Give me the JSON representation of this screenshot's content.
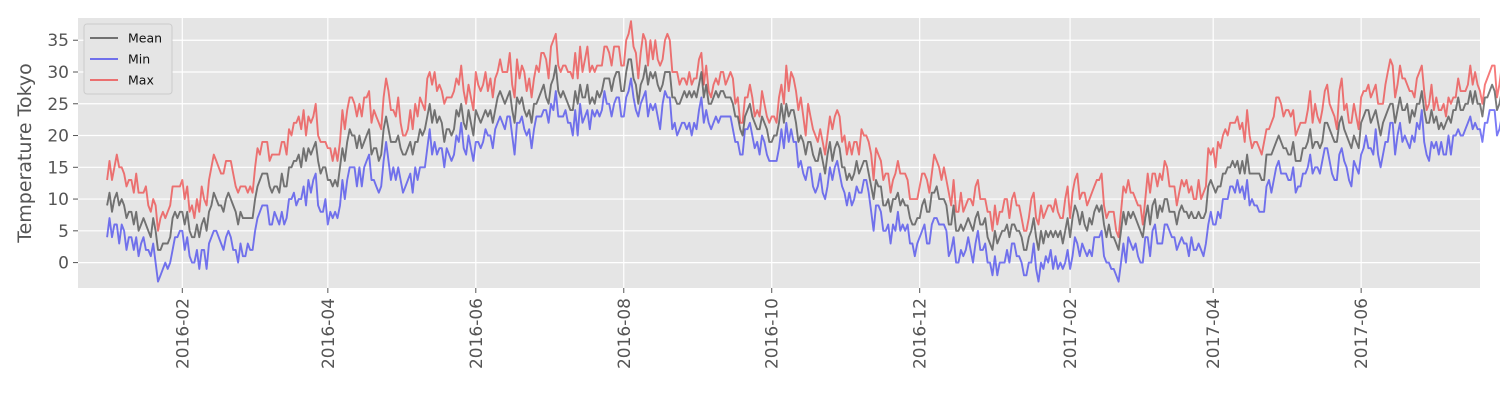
{
  "chart_data": {
    "type": "line",
    "title": "",
    "xlabel": "",
    "ylabel": "Temperature Tokyo",
    "x_range": [
      "2015-12-20",
      "2017-07-20"
    ],
    "x_start": "2016-01-01",
    "x_step_days": 1,
    "ylim": [
      -4,
      38.5
    ],
    "y_ticks": [
      0,
      5,
      10,
      15,
      20,
      25,
      30,
      35
    ],
    "x_ticks": [
      "2016-02",
      "2016-04",
      "2016-06",
      "2016-08",
      "2016-10",
      "2016-12",
      "2017-02",
      "2017-04",
      "2017-06"
    ],
    "grid": true,
    "legend_position": "top-left",
    "keypoints": {
      "mean": [
        [
          0,
          8
        ],
        [
          5,
          9
        ],
        [
          10,
          6
        ],
        [
          15,
          4
        ],
        [
          20,
          5
        ],
        [
          25,
          3
        ],
        [
          30,
          5
        ],
        [
          35,
          6
        ],
        [
          40,
          6
        ],
        [
          45,
          11
        ],
        [
          50,
          10
        ],
        [
          55,
          8
        ],
        [
          60,
          9
        ],
        [
          65,
          13
        ],
        [
          70,
          9
        ],
        [
          75,
          13
        ],
        [
          80,
          15
        ],
        [
          85,
          17
        ],
        [
          90,
          15
        ],
        [
          95,
          14
        ],
        [
          100,
          17
        ],
        [
          105,
          19
        ],
        [
          110,
          17
        ],
        [
          115,
          20
        ],
        [
          120,
          21
        ],
        [
          125,
          19
        ],
        [
          130,
          21
        ],
        [
          135,
          23
        ],
        [
          140,
          21
        ],
        [
          145,
          22
        ],
        [
          150,
          23
        ],
        [
          155,
          24
        ],
        [
          160,
          24
        ],
        [
          165,
          25
        ],
        [
          170,
          25
        ],
        [
          175,
          24
        ],
        [
          180,
          25
        ],
        [
          185,
          27
        ],
        [
          190,
          25
        ],
        [
          195,
          27
        ],
        [
          200,
          25
        ],
        [
          205,
          27
        ],
        [
          210,
          28
        ],
        [
          215,
          29
        ],
        [
          220,
          27
        ],
        [
          225,
          29
        ],
        [
          230,
          28
        ],
        [
          235,
          27
        ],
        [
          240,
          28
        ],
        [
          245,
          27
        ],
        [
          250,
          26
        ],
        [
          255,
          26
        ],
        [
          260,
          24
        ],
        [
          265,
          24
        ],
        [
          270,
          23
        ],
        [
          275,
          22
        ],
        [
          280,
          24
        ],
        [
          285,
          21
        ],
        [
          290,
          19
        ],
        [
          295,
          18
        ],
        [
          300,
          16
        ],
        [
          305,
          14
        ],
        [
          310,
          14
        ],
        [
          315,
          12
        ],
        [
          320,
          11
        ],
        [
          325,
          9
        ],
        [
          330,
          9
        ],
        [
          335,
          8
        ],
        [
          340,
          9
        ],
        [
          345,
          7
        ],
        [
          350,
          7
        ],
        [
          355,
          6
        ],
        [
          360,
          5
        ],
        [
          365,
          5
        ],
        [
          370,
          5
        ],
        [
          375,
          5
        ],
        [
          380,
          4
        ],
        [
          385,
          5
        ],
        [
          390,
          5
        ],
        [
          395,
          6
        ],
        [
          400,
          6
        ],
        [
          405,
          6
        ],
        [
          410,
          6
        ],
        [
          415,
          7
        ],
        [
          420,
          7
        ],
        [
          425,
          7
        ],
        [
          430,
          7
        ],
        [
          435,
          8
        ],
        [
          440,
          8
        ],
        [
          445,
          9
        ],
        [
          450,
          10
        ],
        [
          455,
          11
        ],
        [
          460,
          12
        ],
        [
          465,
          14
        ],
        [
          470,
          15
        ],
        [
          475,
          16
        ],
        [
          480,
          17
        ],
        [
          485,
          17
        ],
        [
          490,
          18
        ],
        [
          495,
          19
        ],
        [
          500,
          20
        ],
        [
          505,
          21
        ],
        [
          510,
          21
        ],
        [
          515,
          21
        ],
        [
          520,
          22
        ],
        [
          525,
          22
        ],
        [
          530,
          22
        ],
        [
          535,
          23
        ],
        [
          540,
          23
        ],
        [
          545,
          24
        ],
        [
          550,
          24
        ],
        [
          555,
          24
        ],
        [
          560,
          24
        ],
        [
          565,
          24
        ],
        [
          570,
          24
        ],
        [
          575,
          24
        ],
        [
          580,
          24
        ]
      ],
      "min": [
        [
          0,
          3
        ],
        [
          5,
          4
        ],
        [
          10,
          2
        ],
        [
          15,
          1
        ],
        [
          20,
          1
        ],
        [
          25,
          -1
        ],
        [
          30,
          1
        ],
        [
          35,
          2
        ],
        [
          40,
          1
        ],
        [
          45,
          6
        ],
        [
          50,
          4
        ],
        [
          55,
          3
        ],
        [
          60,
          4
        ],
        [
          65,
          8
        ],
        [
          70,
          4
        ],
        [
          75,
          7
        ],
        [
          80,
          9
        ],
        [
          85,
          11
        ],
        [
          90,
          9
        ],
        [
          95,
          9
        ],
        [
          100,
          11
        ],
        [
          105,
          14
        ],
        [
          110,
          12
        ],
        [
          115,
          15
        ],
        [
          120,
          16
        ],
        [
          125,
          14
        ],
        [
          130,
          16
        ],
        [
          135,
          18
        ],
        [
          140,
          17
        ],
        [
          145,
          18
        ],
        [
          150,
          19
        ],
        [
          155,
          20
        ],
        [
          160,
          20
        ],
        [
          165,
          21
        ],
        [
          170,
          21
        ],
        [
          175,
          21
        ],
        [
          180,
          22
        ],
        [
          185,
          23
        ],
        [
          190,
          22
        ],
        [
          195,
          23
        ],
        [
          200,
          22
        ],
        [
          205,
          24
        ],
        [
          210,
          24
        ],
        [
          215,
          25
        ],
        [
          220,
          24
        ],
        [
          225,
          24
        ],
        [
          230,
          24
        ],
        [
          235,
          23
        ],
        [
          240,
          23
        ],
        [
          245,
          23
        ],
        [
          250,
          22
        ],
        [
          255,
          22
        ],
        [
          260,
          21
        ],
        [
          265,
          21
        ],
        [
          270,
          20
        ],
        [
          275,
          19
        ],
        [
          280,
          20
        ],
        [
          285,
          17
        ],
        [
          290,
          15
        ],
        [
          295,
          14
        ],
        [
          300,
          12
        ],
        [
          305,
          10
        ],
        [
          310,
          10
        ],
        [
          315,
          8
        ],
        [
          320,
          7
        ],
        [
          325,
          5
        ],
        [
          330,
          5
        ],
        [
          335,
          4
        ],
        [
          340,
          4
        ],
        [
          345,
          3
        ],
        [
          350,
          2
        ],
        [
          355,
          2
        ],
        [
          360,
          1
        ],
        [
          365,
          1
        ],
        [
          370,
          1
        ],
        [
          375,
          1
        ],
        [
          380,
          0
        ],
        [
          385,
          1
        ],
        [
          390,
          1
        ],
        [
          395,
          1
        ],
        [
          400,
          1
        ],
        [
          405,
          1
        ],
        [
          410,
          2
        ],
        [
          415,
          2
        ],
        [
          420,
          2
        ],
        [
          425,
          3
        ],
        [
          430,
          3
        ],
        [
          435,
          3
        ],
        [
          440,
          4
        ],
        [
          445,
          4
        ],
        [
          450,
          5
        ],
        [
          455,
          6
        ],
        [
          460,
          8
        ],
        [
          465,
          10
        ],
        [
          470,
          10
        ],
        [
          475,
          11
        ],
        [
          480,
          12
        ],
        [
          485,
          13
        ],
        [
          490,
          14
        ],
        [
          495,
          15
        ],
        [
          500,
          16
        ],
        [
          505,
          16
        ],
        [
          510,
          16
        ],
        [
          515,
          17
        ],
        [
          520,
          17
        ],
        [
          525,
          18
        ],
        [
          530,
          18
        ],
        [
          535,
          18
        ],
        [
          540,
          19
        ],
        [
          545,
          19
        ],
        [
          550,
          20
        ],
        [
          555,
          20
        ],
        [
          560,
          20
        ],
        [
          565,
          20
        ],
        [
          570,
          20
        ],
        [
          575,
          21
        ],
        [
          580,
          21
        ]
      ],
      "max": [
        [
          0,
          12
        ],
        [
          5,
          14
        ],
        [
          10,
          11
        ],
        [
          15,
          9
        ],
        [
          20,
          9
        ],
        [
          25,
          8
        ],
        [
          30,
          9
        ],
        [
          35,
          10
        ],
        [
          40,
          10
        ],
        [
          45,
          17
        ],
        [
          50,
          15
        ],
        [
          55,
          13
        ],
        [
          60,
          14
        ],
        [
          65,
          18
        ],
        [
          70,
          14
        ],
        [
          75,
          18
        ],
        [
          80,
          20
        ],
        [
          85,
          22
        ],
        [
          90,
          20
        ],
        [
          95,
          19
        ],
        [
          100,
          22
        ],
        [
          105,
          24
        ],
        [
          110,
          22
        ],
        [
          115,
          25
        ],
        [
          120,
          26
        ],
        [
          125,
          24
        ],
        [
          130,
          26
        ],
        [
          135,
          28
        ],
        [
          140,
          26
        ],
        [
          145,
          27
        ],
        [
          150,
          28
        ],
        [
          155,
          29
        ],
        [
          160,
          29
        ],
        [
          165,
          30
        ],
        [
          170,
          30
        ],
        [
          175,
          29
        ],
        [
          180,
          30
        ],
        [
          185,
          32
        ],
        [
          190,
          30
        ],
        [
          195,
          32
        ],
        [
          200,
          30
        ],
        [
          205,
          31
        ],
        [
          210,
          32
        ],
        [
          215,
          33
        ],
        [
          220,
          32
        ],
        [
          225,
          33
        ],
        [
          230,
          32
        ],
        [
          235,
          31
        ],
        [
          240,
          31
        ],
        [
          245,
          30
        ],
        [
          250,
          29
        ],
        [
          255,
          29
        ],
        [
          260,
          27
        ],
        [
          265,
          27
        ],
        [
          270,
          26
        ],
        [
          275,
          25
        ],
        [
          280,
          28
        ],
        [
          285,
          26
        ],
        [
          290,
          24
        ],
        [
          295,
          22
        ],
        [
          300,
          20
        ],
        [
          305,
          18
        ],
        [
          310,
          18
        ],
        [
          315,
          16
        ],
        [
          320,
          15
        ],
        [
          325,
          13
        ],
        [
          330,
          13
        ],
        [
          335,
          12
        ],
        [
          340,
          13
        ],
        [
          345,
          11
        ],
        [
          350,
          11
        ],
        [
          355,
          10
        ],
        [
          360,
          9
        ],
        [
          365,
          9
        ],
        [
          370,
          9
        ],
        [
          375,
          9
        ],
        [
          380,
          8
        ],
        [
          385,
          9
        ],
        [
          390,
          9
        ],
        [
          395,
          10
        ],
        [
          400,
          10
        ],
        [
          405,
          10
        ],
        [
          410,
          10
        ],
        [
          415,
          11
        ],
        [
          420,
          11
        ],
        [
          425,
          11
        ],
        [
          430,
          11
        ],
        [
          435,
          12
        ],
        [
          440,
          12
        ],
        [
          445,
          13
        ],
        [
          450,
          15
        ],
        [
          455,
          16
        ],
        [
          460,
          18
        ],
        [
          465,
          20
        ],
        [
          470,
          21
        ],
        [
          475,
          21
        ],
        [
          480,
          22
        ],
        [
          485,
          23
        ],
        [
          490,
          23
        ],
        [
          495,
          24
        ],
        [
          500,
          25
        ],
        [
          505,
          25
        ],
        [
          510,
          25
        ],
        [
          515,
          26
        ],
        [
          520,
          26
        ],
        [
          525,
          26
        ],
        [
          530,
          27
        ],
        [
          535,
          27
        ],
        [
          540,
          27
        ],
        [
          545,
          27
        ],
        [
          550,
          27
        ],
        [
          555,
          27
        ],
        [
          560,
          27
        ],
        [
          565,
          27
        ],
        [
          570,
          27
        ],
        [
          575,
          27
        ],
        [
          580,
          27
        ]
      ]
    },
    "series": [
      {
        "name": "Mean",
        "color": "#333333",
        "key": "mean"
      },
      {
        "name": "Min",
        "color": "#2222ee",
        "key": "min"
      },
      {
        "name": "Max",
        "color": "#ee2222",
        "key": "max"
      }
    ]
  },
  "colors": {
    "plot_background": "#e5e5e5",
    "grid": "#ffffff",
    "tick": "#555555"
  }
}
